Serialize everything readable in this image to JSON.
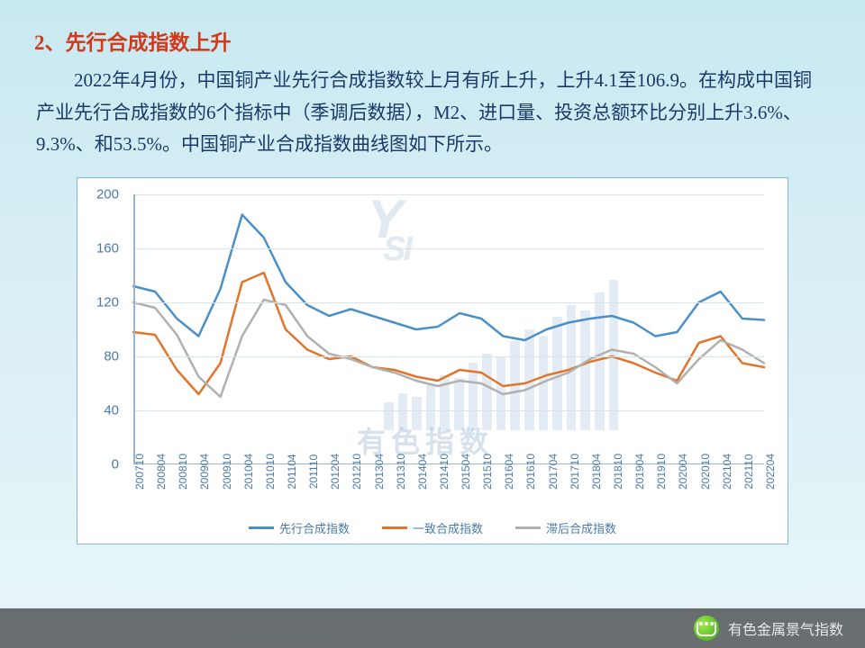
{
  "heading": "2、先行合成指数上升",
  "paragraph": "2022年4月份，中国铜产业先行合成指数较上月有所上升，上升4.1至106.9。在构成中国铜产业先行合成指数的6个指标中（季调后数据），M2、进口量、投资总额环比分别上升3.6%、9.3%、和53.5%。中国铜产业合成指数曲线图如下所示。",
  "chart": {
    "type": "line",
    "background_color": "#ffffff",
    "border_color": "#8ab8d8",
    "grid_color": "#d8e4ec",
    "axis_color": "#9ab6cc",
    "label_color": "#4a7aaa",
    "label_fontsize": 15,
    "xlabel_fontsize": 12,
    "ylim": [
      0,
      200
    ],
    "ytick_step": 40,
    "yticks": [
      0,
      40,
      80,
      120,
      160,
      200
    ],
    "x_categories": [
      "200710",
      "200804",
      "200810",
      "200904",
      "200910",
      "201004",
      "201010",
      "201104",
      "201110",
      "201204",
      "201210",
      "201304",
      "201310",
      "201404",
      "201410",
      "201504",
      "201510",
      "201604",
      "201610",
      "201704",
      "201710",
      "201804",
      "201810",
      "201904",
      "201910",
      "202004",
      "202010",
      "202104",
      "202110",
      "202204"
    ],
    "series": [
      {
        "name": "先行合成指数",
        "color": "#4a8fc8",
        "line_width": 2.5,
        "values": [
          132,
          128,
          108,
          95,
          130,
          185,
          168,
          135,
          118,
          110,
          115,
          110,
          105,
          100,
          102,
          112,
          108,
          95,
          92,
          100,
          105,
          108,
          110,
          105,
          95,
          98,
          120,
          128,
          108,
          107
        ]
      },
      {
        "name": "一致合成指数",
        "color": "#e0752d",
        "line_width": 2.5,
        "values": [
          98,
          96,
          70,
          52,
          75,
          135,
          142,
          100,
          85,
          78,
          80,
          72,
          70,
          65,
          62,
          70,
          68,
          58,
          60,
          66,
          70,
          76,
          80,
          75,
          68,
          62,
          90,
          95,
          75,
          72
        ]
      },
      {
        "name": "滞后合成指数",
        "color": "#b0b0b0",
        "line_width": 2.5,
        "values": [
          120,
          116,
          96,
          65,
          50,
          95,
          122,
          118,
          95,
          82,
          78,
          72,
          68,
          62,
          58,
          62,
          60,
          52,
          55,
          62,
          68,
          78,
          85,
          82,
          72,
          60,
          78,
          92,
          85,
          75
        ]
      }
    ],
    "legend": {
      "position": "bottom",
      "fontsize": 13,
      "items": [
        "先行合成指数",
        "一致合成指数",
        "滞后合成指数"
      ]
    },
    "watermark": {
      "logo_top": "Y",
      "logo_sub": "SI",
      "text": "有色指数",
      "color": "rgba(160,190,215,0.35)"
    }
  },
  "footer": {
    "source_label": "有色金属景气指数",
    "icon": "wechat-icon"
  }
}
